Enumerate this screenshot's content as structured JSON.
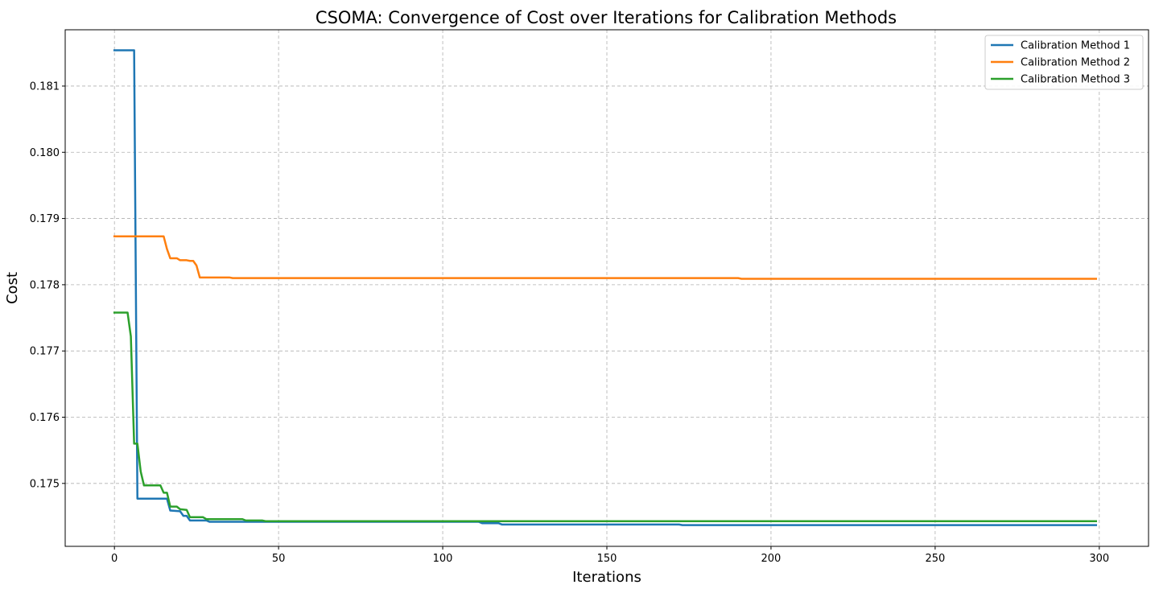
{
  "chart_data": {
    "type": "line",
    "title": "CSOMA: Convergence of Cost over Iterations for Calibration Methods",
    "xlabel": "Iterations",
    "ylabel": "Cost",
    "xlim": [
      -15,
      315
    ],
    "ylim": [
      0.17405,
      0.18185
    ],
    "xticks": [
      0,
      50,
      100,
      150,
      200,
      250,
      300
    ],
    "xtick_labels": [
      "0",
      "50",
      "100",
      "150",
      "200",
      "250",
      "300"
    ],
    "yticks": [
      0.175,
      0.176,
      0.177,
      0.178,
      0.179,
      0.18,
      0.181
    ],
    "ytick_labels": [
      "0.175",
      "0.176",
      "0.177",
      "0.178",
      "0.179",
      "0.180",
      "0.181"
    ],
    "grid": true,
    "legend_position": "top-right",
    "series": [
      {
        "name": "Calibration Method 1",
        "color": "#1f77b4",
        "points": [
          [
            0,
            0.18154
          ],
          [
            6,
            0.18154
          ],
          [
            7,
            0.17477
          ],
          [
            16,
            0.17477
          ],
          [
            17,
            0.17459
          ],
          [
            20,
            0.17458
          ],
          [
            21,
            0.17451
          ],
          [
            22,
            0.17451
          ],
          [
            23,
            0.17444
          ],
          [
            28,
            0.17444
          ],
          [
            29,
            0.17442
          ],
          [
            111,
            0.17442
          ],
          [
            112,
            0.1744
          ],
          [
            117,
            0.1744
          ],
          [
            118,
            0.17438
          ],
          [
            172,
            0.17438
          ],
          [
            173,
            0.17437
          ],
          [
            299,
            0.17437
          ]
        ]
      },
      {
        "name": "Calibration Method 2",
        "color": "#ff7f0e",
        "points": [
          [
            0,
            0.17873
          ],
          [
            15,
            0.17873
          ],
          [
            16,
            0.17854
          ],
          [
            17,
            0.1784
          ],
          [
            19,
            0.1784
          ],
          [
            20,
            0.17837
          ],
          [
            22,
            0.17837
          ],
          [
            23,
            0.17836
          ],
          [
            24,
            0.17836
          ],
          [
            25,
            0.17829
          ],
          [
            26,
            0.17811
          ],
          [
            35,
            0.17811
          ],
          [
            36,
            0.1781
          ],
          [
            55,
            0.1781
          ],
          [
            56,
            0.1781
          ],
          [
            190,
            0.1781
          ],
          [
            191,
            0.17809
          ],
          [
            299,
            0.17809
          ]
        ]
      },
      {
        "name": "Calibration Method 3",
        "color": "#2ca02c",
        "points": [
          [
            0,
            0.17758
          ],
          [
            4,
            0.17758
          ],
          [
            5,
            0.17722
          ],
          [
            6,
            0.1756
          ],
          [
            7,
            0.1756
          ],
          [
            8,
            0.17518
          ],
          [
            9,
            0.17497
          ],
          [
            14,
            0.17497
          ],
          [
            15,
            0.17486
          ],
          [
            16,
            0.17486
          ],
          [
            17,
            0.17465
          ],
          [
            19,
            0.17465
          ],
          [
            20,
            0.17461
          ],
          [
            22,
            0.1746
          ],
          [
            23,
            0.17449
          ],
          [
            27,
            0.17449
          ],
          [
            28,
            0.17446
          ],
          [
            39,
            0.17446
          ],
          [
            40,
            0.17444
          ],
          [
            45,
            0.17444
          ],
          [
            46,
            0.17443
          ],
          [
            299,
            0.17443
          ]
        ]
      }
    ]
  }
}
